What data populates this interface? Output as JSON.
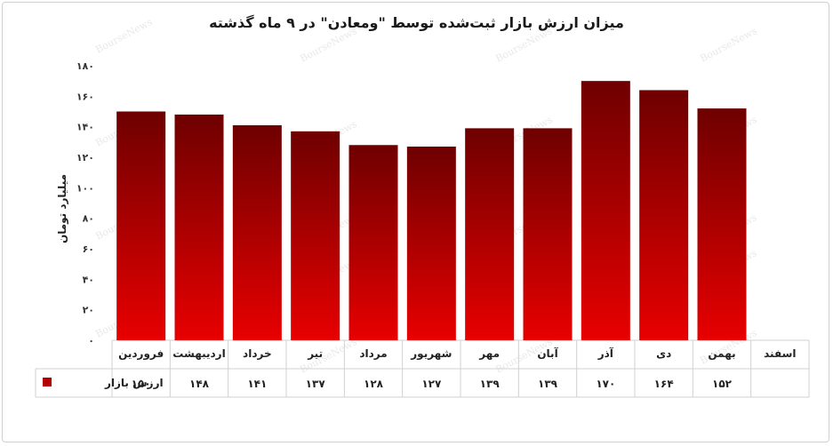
{
  "chart_data": {
    "type": "bar",
    "title": "میزان ارزش بازار ثبت‌شده توسط \"ومعادن\" در ۹ ماه گذشته",
    "xlabel": "",
    "ylabel": "میلیارد تومان",
    "ylim": [
      0,
      180
    ],
    "yticks": [
      0,
      20,
      40,
      60,
      80,
      100,
      120,
      140,
      160,
      180
    ],
    "ytick_labels": [
      "۰",
      "۲۰",
      "۴۰",
      "۶۰",
      "۸۰",
      "۱۰۰",
      "۱۲۰",
      "۱۴۰",
      "۱۶۰",
      "۱۸۰"
    ],
    "categories": [
      "فروردین",
      "اردیبهشت",
      "خرداد",
      "تیر",
      "مرداد",
      "شهریور",
      "مهر",
      "آبان",
      "آذر",
      "دی",
      "بهمن",
      "اسفند"
    ],
    "series": [
      {
        "name": "ارزش بازار",
        "values": [
          150,
          148,
          141,
          137,
          128,
          127,
          139,
          139,
          170,
          164,
          152,
          null
        ],
        "value_labels": [
          "۱۵۰",
          "۱۴۸",
          "۱۴۱",
          "۱۳۷",
          "۱۲۸",
          "۱۲۷",
          "۱۳۹",
          "۱۳۹",
          "۱۷۰",
          "۱۶۴",
          "۱۵۲",
          ""
        ],
        "color": "#b30000"
      }
    ],
    "gradient_top": "#6e0000",
    "gradient_bottom": "#e80000",
    "grid": false,
    "legend": "data-table-row-header"
  },
  "watermark_text": "BourseNews"
}
